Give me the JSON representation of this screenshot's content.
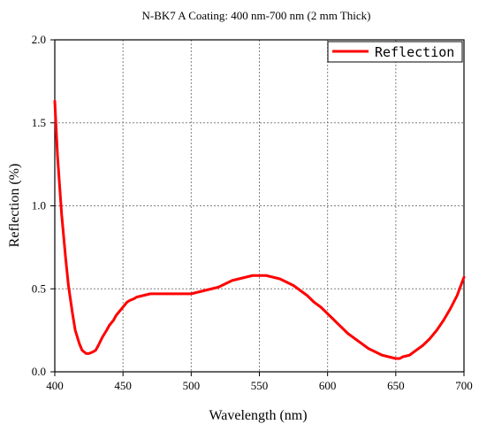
{
  "chart_data": {
    "type": "line",
    "title": "N-BK7 A Coating: 400 nm-700 nm (2 mm Thick)",
    "xlabel": "Wavelength (nm)",
    "ylabel": "Reflection (%)",
    "xlim": [
      400,
      700
    ],
    "ylim": [
      0,
      2.0
    ],
    "xticks": [
      "400",
      "450",
      "500",
      "550",
      "600",
      "650",
      "700"
    ],
    "yticks": [
      "0.0",
      "0.5",
      "1.0",
      "1.5",
      "2.0"
    ],
    "grid": true,
    "legend_position": "top-right",
    "series": [
      {
        "name": "Reflection",
        "color": "#ff0000",
        "x": [
          400,
          402,
          405,
          408,
          410,
          413,
          415,
          418,
          420,
          423,
          425,
          428,
          430,
          432,
          435,
          438,
          440,
          443,
          445,
          448,
          450,
          453,
          455,
          458,
          460,
          465,
          470,
          475,
          480,
          485,
          490,
          495,
          500,
          505,
          510,
          515,
          520,
          525,
          530,
          535,
          540,
          545,
          550,
          555,
          560,
          565,
          570,
          575,
          580,
          585,
          590,
          595,
          600,
          605,
          610,
          615,
          620,
          625,
          630,
          635,
          640,
          645,
          650,
          653,
          655,
          660,
          665,
          670,
          675,
          680,
          685,
          690,
          695,
          700
        ],
        "y": [
          1.63,
          1.3,
          0.95,
          0.68,
          0.52,
          0.35,
          0.25,
          0.17,
          0.13,
          0.11,
          0.11,
          0.12,
          0.13,
          0.16,
          0.21,
          0.25,
          0.28,
          0.31,
          0.34,
          0.37,
          0.39,
          0.42,
          0.43,
          0.44,
          0.45,
          0.46,
          0.47,
          0.47,
          0.47,
          0.47,
          0.47,
          0.47,
          0.47,
          0.48,
          0.49,
          0.5,
          0.51,
          0.53,
          0.55,
          0.56,
          0.57,
          0.58,
          0.58,
          0.58,
          0.57,
          0.56,
          0.54,
          0.52,
          0.49,
          0.46,
          0.42,
          0.39,
          0.35,
          0.31,
          0.27,
          0.23,
          0.2,
          0.17,
          0.14,
          0.12,
          0.1,
          0.09,
          0.08,
          0.08,
          0.09,
          0.1,
          0.13,
          0.16,
          0.2,
          0.25,
          0.31,
          0.38,
          0.46,
          0.57
        ]
      }
    ]
  }
}
